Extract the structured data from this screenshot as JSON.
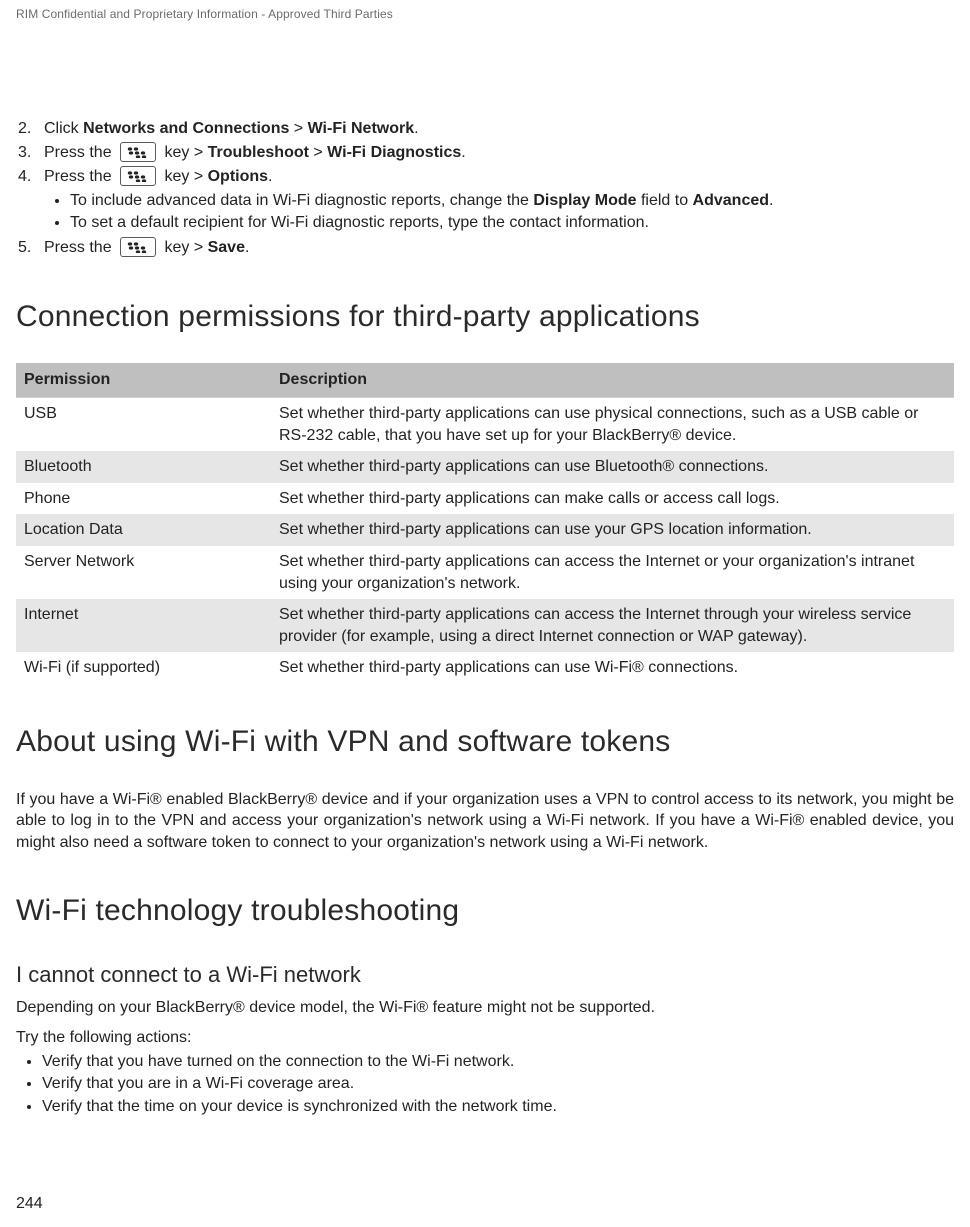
{
  "header": {
    "note": "RIM Confidential and Proprietary Information - Approved Third Parties"
  },
  "steps": [
    {
      "n": "2.",
      "before": "Click ",
      "bold": "Networks and Connections",
      "mid": " > ",
      "bold2": "Wi-Fi Network",
      "after": ".",
      "hasKey": false
    },
    {
      "n": "3.",
      "before": "Press the ",
      "afterKey": " key > ",
      "bold": "Troubleshoot",
      "mid": " > ",
      "bold2": "Wi-Fi Diagnostics",
      "after": ".",
      "hasKey": true
    },
    {
      "n": "4.",
      "before": "Press the ",
      "afterKey": " key > ",
      "bold": "Options",
      "after": ".",
      "hasKey": true,
      "sub": [
        {
          "t1": "To include advanced data in Wi-Fi diagnostic reports, change the ",
          "b1": "Display Mode",
          "t2": " field to ",
          "b2": "Advanced",
          "t3": "."
        },
        {
          "t1": "To set a default recipient for Wi-Fi diagnostic reports, type the contact information."
        }
      ]
    },
    {
      "n": "5.",
      "before": "Press the ",
      "afterKey": " key > ",
      "bold": "Save",
      "after": ".",
      "hasKey": true
    }
  ],
  "section1": {
    "title": "Connection permissions for third-party applications",
    "columns": [
      "Permission",
      "Description"
    ],
    "rows": [
      [
        "USB",
        "Set whether third-party applications can use physical connections, such as a USB cable or RS-232 cable, that you have set up for your BlackBerry® device."
      ],
      [
        "Bluetooth",
        "Set whether third-party applications can use Bluetooth® connections."
      ],
      [
        "Phone",
        "Set whether third-party applications can make calls or access call logs."
      ],
      [
        "Location Data",
        "Set whether third-party applications can use your GPS location information."
      ],
      [
        "Server Network",
        "Set whether third-party applications can access the Internet or your organization's intranet using your organization's network."
      ],
      [
        "Internet",
        "Set whether third-party applications can access the Internet through your wireless service provider (for example, using a direct Internet connection or WAP gateway)."
      ],
      [
        "Wi-Fi (if supported)",
        "Set whether third-party applications can use Wi-Fi® connections."
      ]
    ]
  },
  "section2": {
    "title": "About using Wi-Fi with VPN and software tokens",
    "para": "If you have a Wi-Fi® enabled BlackBerry® device and if your organization uses a VPN to control access to its network, you might be able to log in to the VPN and access your organization's network using a Wi-Fi network. If you have a Wi-Fi® enabled device, you might also need a software token to connect to your organization's network using a Wi-Fi network."
  },
  "section3": {
    "title": "Wi-Fi technology troubleshooting",
    "sub": {
      "title": "I cannot connect to a Wi-Fi network",
      "p1": "Depending on your BlackBerry® device model, the Wi-Fi® feature might not be supported.",
      "p2": "Try the following actions:",
      "bullets": [
        "Verify that you have turned on the connection to the Wi-Fi network.",
        "Verify that you are in a Wi-Fi coverage area.",
        "Verify that the time on your device is synchronized with the network time."
      ]
    }
  },
  "pageNumber": "244",
  "style": {
    "headerRowBg": "#bfbfbf",
    "oddRowBg": "#e6e6e6",
    "evenRowBg": "#ffffff"
  }
}
